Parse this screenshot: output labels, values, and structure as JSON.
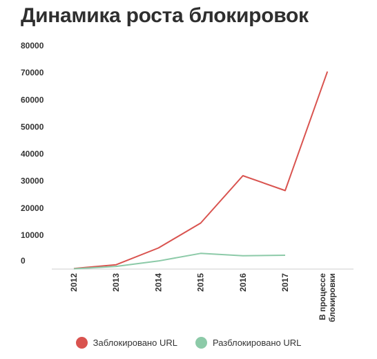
{
  "chart_data": {
    "type": "line",
    "title": "Динамика роста блокировок",
    "categories": [
      "2012",
      "2013",
      "2014",
      "2015",
      "2016",
      "2017",
      "В процессе блокировки"
    ],
    "category_lines": [
      [
        "2012"
      ],
      [
        "2013"
      ],
      [
        "2014"
      ],
      [
        "2015"
      ],
      [
        "2016"
      ],
      [
        "2017"
      ],
      [
        "В процессе",
        "блокировки"
      ]
    ],
    "y_ticks": [
      "80000",
      "70000",
      "60000",
      "50000",
      "40000",
      "30000",
      "20000",
      "10000",
      "0"
    ],
    "ylim": [
      0,
      80000
    ],
    "grid": false,
    "legend_position": "bottom",
    "series": [
      {
        "name": "Заблокировано URL",
        "color": "#d9534f",
        "values": [
          200,
          1600,
          7800,
          17000,
          34500,
          29000,
          73000
        ]
      },
      {
        "name": "Разблокировано URL",
        "color": "#8ccaa8",
        "values": [
          100,
          1000,
          3000,
          5800,
          4900,
          5100,
          null
        ]
      }
    ]
  }
}
